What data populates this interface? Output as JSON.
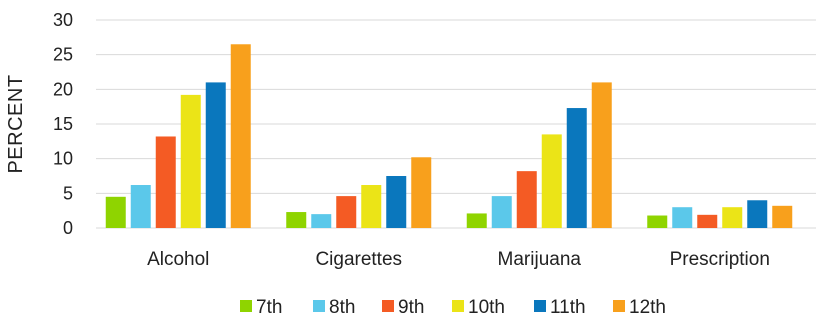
{
  "chart_data": {
    "type": "bar",
    "categories": [
      "Alcohol",
      "Cigarettes",
      "Marijuana",
      "Prescription"
    ],
    "series": [
      {
        "name": "7th",
        "color": "#8fd400",
        "values": [
          4.5,
          2.3,
          2.1,
          1.8
        ]
      },
      {
        "name": "8th",
        "color": "#5bc8ea",
        "values": [
          6.2,
          2.0,
          4.6,
          3.0
        ]
      },
      {
        "name": "9th",
        "color": "#f45b24",
        "values": [
          13.2,
          4.6,
          8.2,
          1.9
        ]
      },
      {
        "name": "10th",
        "color": "#ebe417",
        "values": [
          19.2,
          6.2,
          13.5,
          3.0
        ]
      },
      {
        "name": "11th",
        "color": "#0a77bd",
        "values": [
          21.0,
          7.5,
          17.3,
          4.0
        ]
      },
      {
        "name": "12th",
        "color": "#f8a01c",
        "values": [
          26.5,
          10.2,
          21.0,
          3.2
        ]
      }
    ],
    "title": "",
    "xlabel": "",
    "ylabel": "PERCENT",
    "ylim": [
      0,
      30
    ],
    "yticks": [
      0,
      5,
      10,
      15,
      20,
      25,
      30
    ],
    "grid": true,
    "legend": "bottom"
  }
}
